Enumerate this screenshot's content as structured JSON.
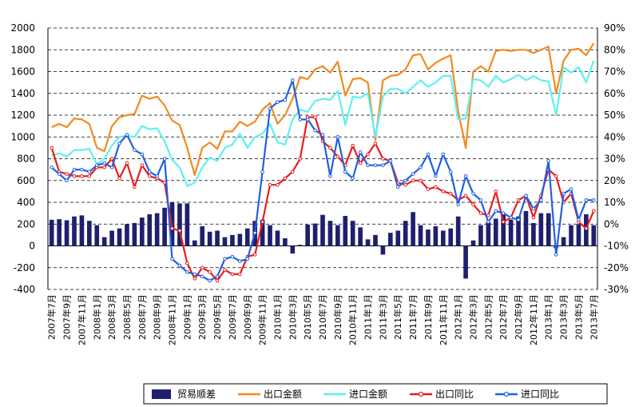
{
  "chart_data": {
    "type": "bar",
    "categories": [
      "2007年7月",
      "2007年8月",
      "2007年9月",
      "2007年10月",
      "2007年11月",
      "2007年12月",
      "2008年1月",
      "2008年2月",
      "2008年3月",
      "2008年4月",
      "2008年5月",
      "2008年6月",
      "2008年7月",
      "2008年8月",
      "2008年9月",
      "2008年10月",
      "2008年11月",
      "2008年12月",
      "2009年1月",
      "2009年2月",
      "2009年3月",
      "2009年4月",
      "2009年5月",
      "2009年6月",
      "2009年7月",
      "2009年8月",
      "2009年9月",
      "2009年10月",
      "2009年11月",
      "2009年12月",
      "2010年1月",
      "2010年2月",
      "2010年3月",
      "2010年4月",
      "2010年5月",
      "2010年6月",
      "2010年7月",
      "2010年8月",
      "2010年9月",
      "2010年10月",
      "2010年11月",
      "2010年12月",
      "2011年1月",
      "2011年2月",
      "2011年3月",
      "2011年4月",
      "2011年5月",
      "2011年6月",
      "2011年7月",
      "2011年8月",
      "2011年9月",
      "2011年10月",
      "2011年11月",
      "2011年12月",
      "2012年1月",
      "2012年2月",
      "2012年3月",
      "2012年4月",
      "2012年5月",
      "2012年6月",
      "2012年7月",
      "2012年8月",
      "2012年9月",
      "2012年10月",
      "2012年11月",
      "2012年12月",
      "2013年1月",
      "2013年2月",
      "2013年3月",
      "2013年4月",
      "2013年5月",
      "2013年6月",
      "2013年7月"
    ],
    "x_tick_labels": [
      "2007年7月",
      "2007年9月",
      "2007年11月",
      "2008年1月",
      "2008年3月",
      "2008年5月",
      "2008年7月",
      "2008年9月",
      "2008年11月",
      "2009年1月",
      "2009年3月",
      "2009年5月",
      "2009年7月",
      "2009年9月",
      "2009年11月",
      "2010年1月",
      "2010年3月",
      "2010年5月",
      "2010年7月",
      "2010年9月",
      "2010年11月",
      "2011年1月",
      "2011年3月",
      "2011年5月",
      "2011年7月",
      "2011年9月",
      "2011年11月",
      "2012年1月",
      "2012年3月",
      "2012年5月",
      "2012年7月",
      "2012年9月",
      "2012年11月",
      "2013年1月",
      "2013年3月",
      "2013年5月",
      "2013年7月"
    ],
    "y_left": {
      "ylim": [
        -400,
        2000
      ],
      "ticks": [
        -400,
        -200,
        0,
        200,
        400,
        600,
        800,
        1000,
        1200,
        1400,
        1600,
        1800,
        2000
      ]
    },
    "y_right": {
      "ylim": [
        -30,
        90
      ],
      "ticks": [
        "-30%",
        "-20%",
        "-10%",
        "0%",
        "10%",
        "20%",
        "30%",
        "40%",
        "50%",
        "60%",
        "70%",
        "80%",
        "90%"
      ]
    },
    "grid": "horizontal dashed",
    "legend_position": "bottom",
    "series": [
      {
        "name": "贸易顺差",
        "type": "bar",
        "axis": "left",
        "color": "#1f1f6e",
        "values": [
          240,
          245,
          235,
          270,
          280,
          230,
          190,
          80,
          140,
          160,
          200,
          210,
          260,
          290,
          300,
          350,
          400,
          390,
          390,
          50,
          180,
          130,
          140,
          80,
          100,
          110,
          160,
          230,
          240,
          190,
          140,
          70,
          -70,
          10,
          195,
          205,
          285,
          230,
          190,
          275,
          230,
          170,
          60,
          100,
          -80,
          120,
          140,
          230,
          310,
          190,
          150,
          180,
          140,
          160,
          270,
          -300,
          50,
          190,
          220,
          250,
          300,
          240,
          270,
          320,
          210,
          300,
          300,
          -20,
          80,
          190,
          200,
          290,
          190
        ]
      },
      {
        "name": "出口金额",
        "type": "line",
        "axis": "left",
        "color": "#f28a1e",
        "values": [
          1090,
          1120,
          1090,
          1170,
          1160,
          1120,
          900,
          870,
          1100,
          1180,
          1200,
          1210,
          1380,
          1350,
          1370,
          1290,
          1150,
          1110,
          900,
          650,
          900,
          950,
          890,
          1050,
          1050,
          1140,
          1100,
          1140,
          1250,
          1310,
          1120,
          1200,
          1350,
          1550,
          1530,
          1620,
          1650,
          1590,
          1690,
          1380,
          1530,
          1540,
          1500,
          970,
          1520,
          1560,
          1570,
          1620,
          1750,
          1760,
          1620,
          1680,
          1720,
          1750,
          1240,
          900,
          1600,
          1650,
          1600,
          1790,
          1800,
          1790,
          1800,
          1800,
          1770,
          1800,
          1830,
          1400,
          1700,
          1800,
          1810,
          1750,
          1860
        ]
      },
      {
        "name": "进口金额",
        "type": "line",
        "axis": "left",
        "color": "#5ff0f0",
        "values": [
          830,
          850,
          820,
          880,
          880,
          890,
          750,
          800,
          920,
          1000,
          1010,
          1000,
          1100,
          1070,
          1080,
          960,
          790,
          720,
          550,
          580,
          720,
          810,
          780,
          900,
          930,
          1030,
          900,
          1000,
          1030,
          1120,
          950,
          930,
          1160,
          1250,
          1230,
          1330,
          1350,
          1340,
          1420,
          1110,
          1370,
          1360,
          1400,
          1000,
          1370,
          1440,
          1440,
          1400,
          1460,
          1520,
          1460,
          1500,
          1560,
          1560,
          1160,
          1170,
          1530,
          1520,
          1460,
          1560,
          1500,
          1530,
          1570,
          1520,
          1560,
          1520,
          1510,
          1200,
          1640,
          1590,
          1640,
          1500,
          1700
        ]
      },
      {
        "name": "出口同比",
        "type": "line",
        "axis": "right",
        "color": "#e81c1c",
        "values": [
          35,
          24,
          23,
          22,
          22,
          22,
          26,
          26,
          30,
          21,
          28,
          17,
          27,
          22,
          21,
          19,
          -2,
          -3,
          -18,
          -25,
          -20,
          -22,
          -26,
          -21,
          -23,
          -23,
          -15,
          -14,
          1,
          18,
          18,
          21,
          24,
          30,
          49,
          49,
          38,
          35,
          31,
          27,
          36,
          28,
          32,
          37,
          30,
          29,
          19,
          18,
          20,
          20,
          16,
          17,
          15,
          14,
          11,
          13,
          9,
          5,
          4,
          15,
          1,
          3,
          11,
          13,
          3,
          13,
          25,
          22,
          10,
          14,
          1,
          -2,
          6
        ]
      },
      {
        "name": "进口同比",
        "type": "line",
        "axis": "right",
        "color": "#2060e0",
        "values": [
          26,
          23,
          20,
          25,
          25,
          24,
          27,
          28,
          26,
          37,
          41,
          34,
          32,
          24,
          22,
          30,
          -16,
          -19,
          -22,
          -23,
          -24,
          -26,
          -24,
          -16,
          -15,
          -17,
          -16,
          -4,
          24,
          53,
          56,
          57,
          66,
          48,
          48,
          43,
          41,
          22,
          40,
          24,
          21,
          33,
          27,
          27,
          27,
          29,
          17,
          20,
          23,
          26,
          32,
          22,
          32,
          24,
          9,
          22,
          14,
          11,
          1,
          6,
          5,
          3,
          2,
          13,
          7,
          11,
          29,
          -14,
          14,
          16,
          2,
          11,
          11
        ]
      }
    ]
  }
}
